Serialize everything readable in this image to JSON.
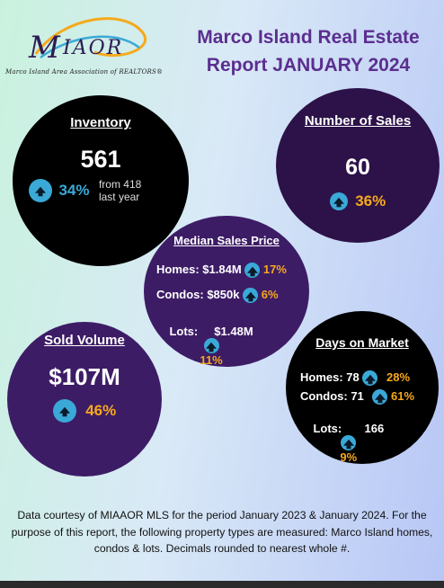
{
  "logo": {
    "wordmark": "MIAOR",
    "tagline": "Marco Island Area Association of REALTORS®"
  },
  "title": {
    "line1": "Marco Island Real Estate",
    "line2": "Report JANUARY 2024"
  },
  "inventory": {
    "heading": "Inventory",
    "value": "561",
    "change": "34%",
    "from_line1": "from 418",
    "from_line2": "last year"
  },
  "sales": {
    "heading": "Number of Sales",
    "value": "60",
    "change": "36%"
  },
  "median": {
    "heading": "Median Sales Price",
    "rows": [
      {
        "label": "Homes: $1.84M",
        "change": "17%"
      },
      {
        "label": "Condos: $850k",
        "change": "6%"
      },
      {
        "label": "Lots:     $1.48M",
        "change": "11%"
      }
    ]
  },
  "volume": {
    "heading": "Sold Volume",
    "value": "$107M",
    "change": "46%"
  },
  "dom": {
    "heading": "Days on Market",
    "rows": [
      {
        "label": "Homes: 78",
        "change": "28%"
      },
      {
        "label": "Condos: 71",
        "change": "61%"
      },
      {
        "label": "Lots:       166",
        "change": "9%"
      }
    ]
  },
  "footer": {
    "text": "Data courtesy of MIAAOR MLS for the period January 2023 & January 2024. For the purpose of this report, the following property types are measured: Marco Island homes, condos & lots. Decimals rounded to nearest whole #."
  },
  "colors": {
    "title": "#5b2e8f",
    "arrow": "#3aa9d8",
    "highlight": "#f6a91c"
  }
}
